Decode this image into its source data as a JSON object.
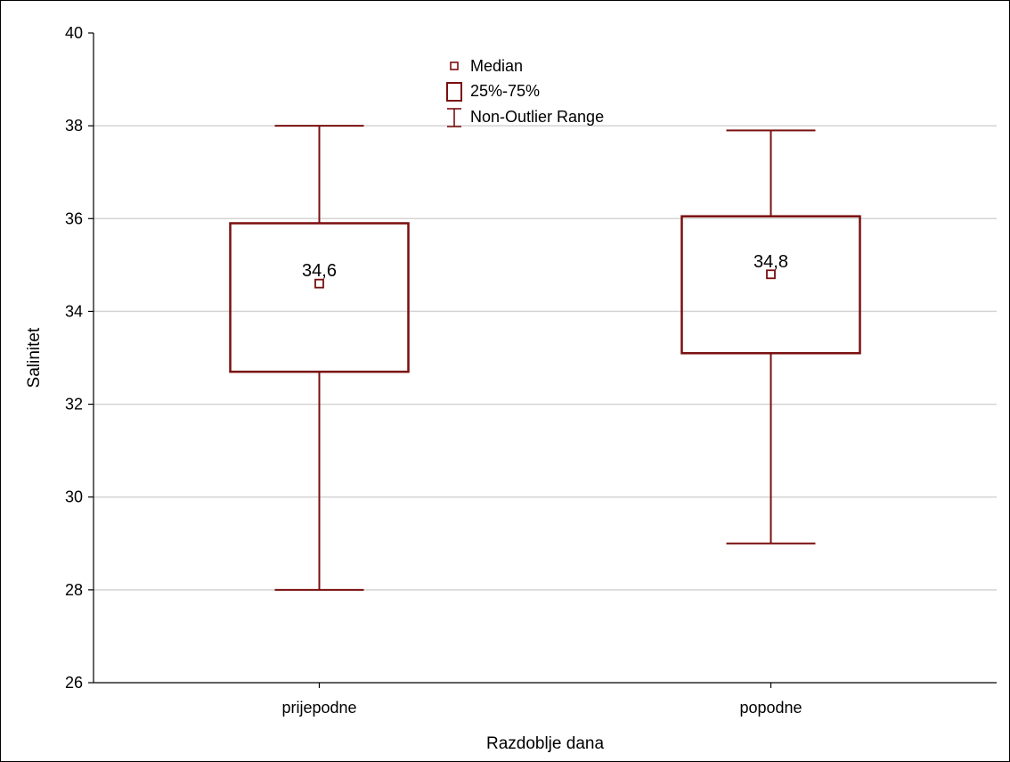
{
  "chart_data": {
    "type": "boxplot",
    "xlabel": "Razdoblje dana",
    "ylabel": "Salinitet",
    "ylim": [
      26,
      40
    ],
    "yticks": [
      26,
      28,
      30,
      32,
      34,
      36,
      38,
      40
    ],
    "grid": true,
    "legend": {
      "placement": "top-center",
      "entries": [
        {
          "symbol": "median",
          "label": "Median"
        },
        {
          "symbol": "box",
          "label": "25%-75%"
        },
        {
          "symbol": "whisker",
          "label": "Non-Outlier Range"
        }
      ]
    },
    "color": "#7a0f0f",
    "categories": [
      "prijepodne",
      "popodne"
    ],
    "boxes": [
      {
        "category": "prijepodne",
        "min": 28.0,
        "q1": 32.7,
        "median": 34.6,
        "q3": 35.9,
        "max": 38.0,
        "median_label": "34,6"
      },
      {
        "category": "popodne",
        "min": 29.0,
        "q1": 33.1,
        "median": 34.8,
        "q3": 36.05,
        "max": 37.9,
        "median_label": "34,8"
      }
    ]
  }
}
